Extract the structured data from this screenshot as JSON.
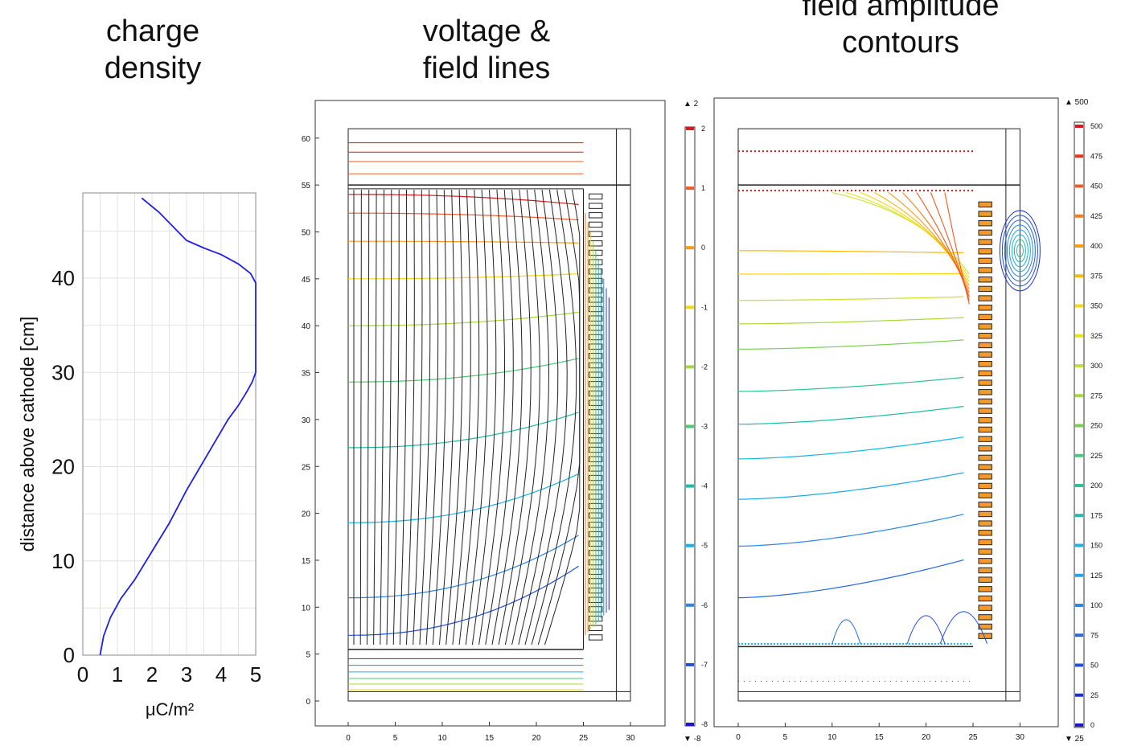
{
  "titles": {
    "left": "charge\ndensity",
    "middle": "voltage &\nfield lines",
    "right": "field amplitude\ncontours"
  },
  "chart_data": [
    {
      "type": "line",
      "xlabel": "μC/m²",
      "ylabel": "distance above cathode [cm]",
      "xlim": [
        0,
        5
      ],
      "ylim": [
        0,
        48
      ],
      "xticks": [
        "0",
        "1",
        "2",
        "3",
        "4",
        "5"
      ],
      "yticks": [
        "0",
        "10",
        "20",
        "30",
        "40"
      ],
      "grid": true,
      "series": [
        {
          "color": "#1f1fe6",
          "points": [
            [
              0.5,
              0
            ],
            [
              0.6,
              2
            ],
            [
              0.8,
              4
            ],
            [
              1.1,
              6
            ],
            [
              1.5,
              8
            ],
            [
              2.0,
              11
            ],
            [
              2.5,
              14
            ],
            [
              3.0,
              17.5
            ],
            [
              3.4,
              20
            ],
            [
              3.8,
              22.5
            ],
            [
              4.2,
              25
            ],
            [
              4.5,
              26.5
            ],
            [
              4.75,
              28
            ],
            [
              4.9,
              29
            ],
            [
              5.0,
              30
            ],
            [
              5.0,
              39.5
            ],
            [
              4.85,
              40.5
            ],
            [
              4.5,
              41.5
            ],
            [
              4.0,
              42.5
            ],
            [
              3.5,
              43.2
            ],
            [
              3.0,
              44
            ],
            [
              2.6,
              45.5
            ],
            [
              2.2,
              47
            ],
            [
              1.7,
              48.5
            ]
          ]
        }
      ]
    },
    {
      "type": "contour",
      "quantity": "voltage & field lines",
      "xticks": [
        "0",
        "5",
        "10",
        "15",
        "20",
        "25",
        "30"
      ],
      "yticks": [
        "0",
        "5",
        "10",
        "15",
        "20",
        "25",
        "30",
        "35",
        "40",
        "45",
        "50",
        "55",
        "60"
      ],
      "xlim": [
        -3,
        33
      ],
      "ylim": [
        -3,
        64
      ],
      "colorbar": {
        "max_label": "▲ 2",
        "min_label": "▼ -8",
        "ticks": [
          "2",
          "1",
          "0",
          "-1",
          "-2",
          "-3",
          "-4",
          "-5",
          "-6",
          "-7",
          "-8"
        ],
        "colors": [
          "#d7191c",
          "#f45a1e",
          "#fd9b0b",
          "#f5d80d",
          "#a6d936",
          "#4bc873",
          "#1bbcab",
          "#11b6e6",
          "#2a86e8",
          "#1f4fe0",
          "#1a14d0"
        ]
      }
    },
    {
      "type": "contour",
      "quantity": "field amplitude contours",
      "xticks": [
        "0",
        "5",
        "10",
        "15",
        "20",
        "25",
        "30"
      ],
      "xlim": [
        -3,
        33
      ],
      "ylim": [
        -3,
        64
      ],
      "colorbar": {
        "max_label": "▲ 500",
        "min_label": "▼ 25",
        "ticks": [
          "500",
          "475",
          "450",
          "425",
          "400",
          "375",
          "350",
          "325",
          "300",
          "275",
          "250",
          "225",
          "200",
          "175",
          "150",
          "125",
          "100",
          "75",
          "50",
          "25",
          "0"
        ],
        "colors": [
          "#d7191c",
          "#e8341b",
          "#f45a1e",
          "#fa7a14",
          "#fd9b0b",
          "#fbb80a",
          "#f5d80d",
          "#e2e41c",
          "#c8e02a",
          "#a6d936",
          "#79cf52",
          "#4bc873",
          "#2bc29a",
          "#1bbcab",
          "#11b6e6",
          "#1ca6ea",
          "#2a86e8",
          "#2467e4",
          "#1f4fe0",
          "#1a2fd6",
          "#1a14d0"
        ]
      }
    }
  ]
}
